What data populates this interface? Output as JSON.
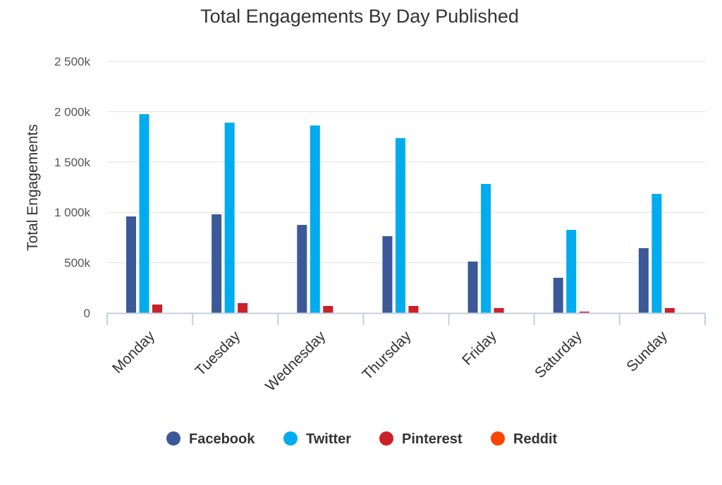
{
  "chart_data": {
    "type": "bar",
    "title": "Total Engagements By Day Published",
    "xlabel": "",
    "ylabel": "Total Engagements",
    "ylim": [
      0,
      2500000
    ],
    "yticks": [
      0,
      500000,
      1000000,
      1500000,
      2000000,
      2500000
    ],
    "ytick_labels": [
      "0",
      "500k",
      "1 000k",
      "1 500k",
      "2 000k",
      "2 500k"
    ],
    "grid": true,
    "legend_position": "bottom",
    "categories": [
      "Monday",
      "Tuesday",
      "Wednesday",
      "Thursday",
      "Friday",
      "Saturday",
      "Sunday"
    ],
    "series": [
      {
        "name": "Facebook",
        "color": "#3b5998",
        "values": [
          959000,
          980000,
          875000,
          763000,
          511000,
          350000,
          644000
        ]
      },
      {
        "name": "Twitter",
        "color": "#00acee",
        "values": [
          1975000,
          1891000,
          1863000,
          1737000,
          1282000,
          826000,
          1183000
        ]
      },
      {
        "name": "Pinterest",
        "color": "#cb2027",
        "values": [
          84000,
          98000,
          70000,
          70000,
          49000,
          14000,
          49000
        ]
      },
      {
        "name": "Reddit",
        "color": "#ff4500",
        "values": [
          0,
          0,
          0,
          0,
          0,
          0,
          0
        ]
      }
    ]
  }
}
